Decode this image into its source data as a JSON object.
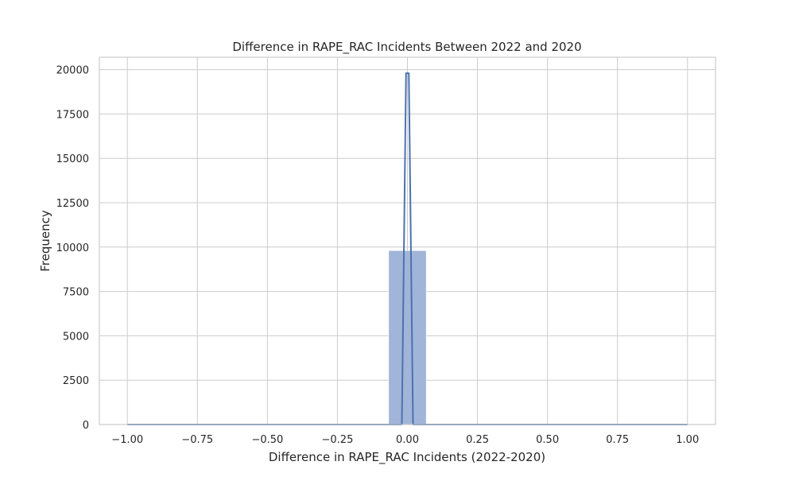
{
  "chart_data": {
    "type": "bar",
    "title": "Difference in RAPE_RAC Incidents Between 2022 and 2020",
    "xlabel": "Difference in RAPE_RAC Incidents (2022-2020)",
    "ylabel": "Frequency",
    "xlim": [
      -1.1,
      1.1
    ],
    "ylim": [
      0,
      20700
    ],
    "xticks": [
      -1.0,
      -0.75,
      -0.5,
      -0.25,
      0.0,
      0.25,
      0.5,
      0.75,
      1.0
    ],
    "xtick_labels": [
      "−1.00",
      "−0.75",
      "−0.50",
      "−0.25",
      "0.00",
      "0.25",
      "0.50",
      "0.75",
      "1.00"
    ],
    "yticks": [
      0,
      2500,
      5000,
      7500,
      10000,
      12500,
      15000,
      17500,
      20000
    ],
    "ytick_labels": [
      "0",
      "2500",
      "5000",
      "7500",
      "10000",
      "12500",
      "15000",
      "17500",
      "20000"
    ],
    "grid": true,
    "bars": [
      {
        "x_start": -1.0,
        "x_end": -0.933,
        "value": 1
      },
      {
        "x_start": -0.067,
        "x_end": 0.067,
        "value": 9800
      },
      {
        "x_start": 0.933,
        "x_end": 1.0,
        "value": 1
      }
    ],
    "kde_line": {
      "x": [
        -1.0,
        -0.9,
        -0.1,
        -0.02,
        -0.005,
        0.0,
        0.005,
        0.02,
        0.1,
        0.9,
        1.0
      ],
      "y": [
        0,
        0,
        0,
        0,
        19800,
        19800,
        19800,
        0,
        0,
        0,
        0
      ]
    },
    "colors": {
      "bar_fill": "#a1b5d8",
      "line": "#4c72b0"
    }
  }
}
